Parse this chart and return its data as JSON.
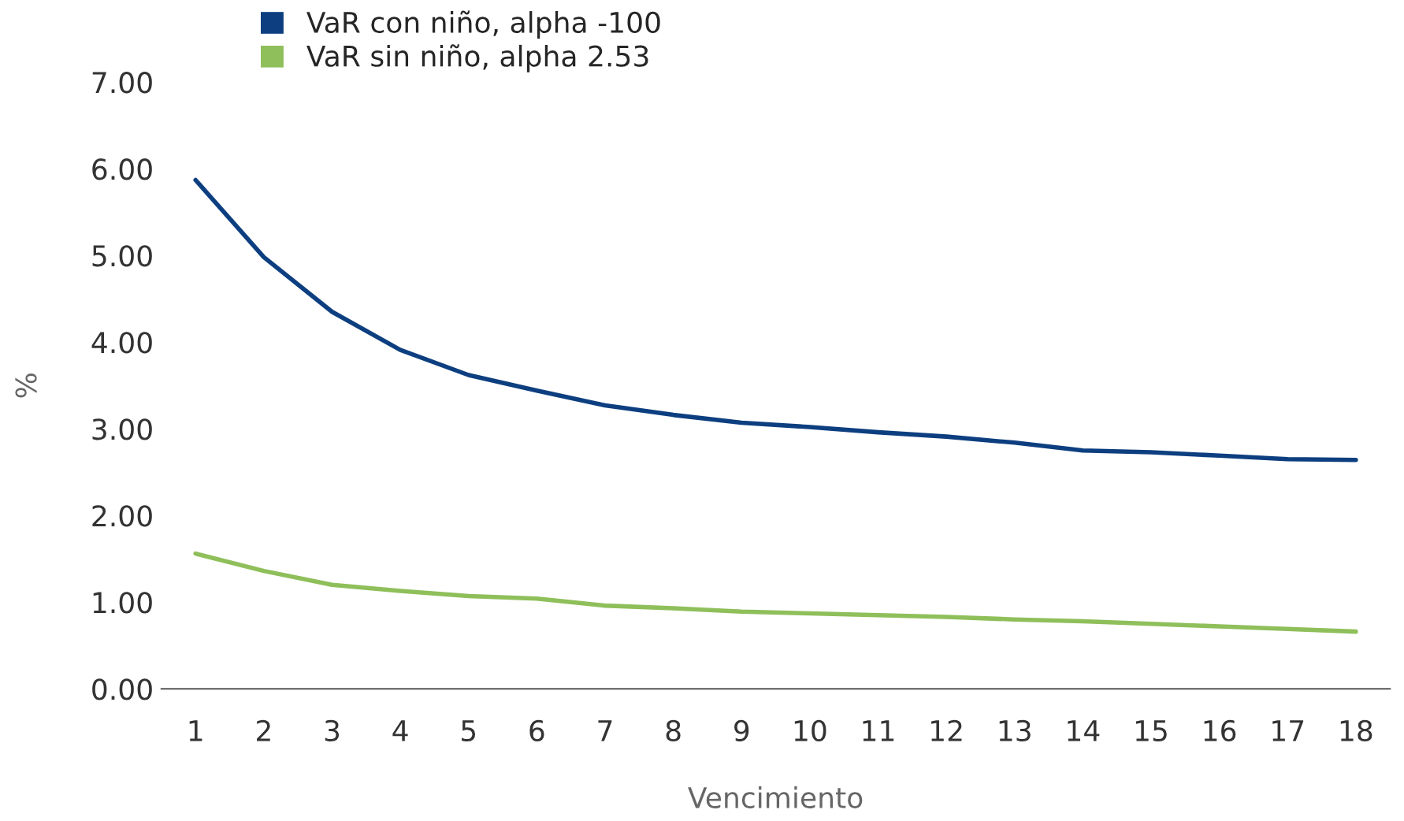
{
  "chart_data": {
    "type": "line",
    "xlabel": "Vencimiento",
    "ylabel": "%",
    "categories": [
      "1",
      "2",
      "3",
      "4",
      "5",
      "6",
      "7",
      "8",
      "9",
      "10",
      "11",
      "12",
      "13",
      "14",
      "15",
      "16",
      "17",
      "18"
    ],
    "series": [
      {
        "name": "VaR con niño, alpha -100",
        "color": "#0d3f80",
        "values": [
          5.87,
          4.98,
          4.35,
          3.91,
          3.62,
          3.44,
          3.27,
          3.16,
          3.07,
          3.02,
          2.96,
          2.91,
          2.84,
          2.75,
          2.73,
          2.69,
          2.65,
          2.64
        ]
      },
      {
        "name": "VaR sin niño, alpha 2.53",
        "color": "#8fbf5a",
        "values": [
          1.56,
          1.36,
          1.2,
          1.13,
          1.07,
          1.04,
          0.96,
          0.93,
          0.89,
          0.87,
          0.85,
          0.83,
          0.8,
          0.78,
          0.75,
          0.72,
          0.69,
          0.66
        ]
      }
    ],
    "ylim": [
      0,
      7
    ],
    "yticks": [
      {
        "value": 0,
        "label": "0.00"
      },
      {
        "value": 1,
        "label": "1.00"
      },
      {
        "value": 2,
        "label": "2.00"
      },
      {
        "value": 3,
        "label": "3.00"
      },
      {
        "value": 4,
        "label": "4.00"
      },
      {
        "value": 5,
        "label": "5.00"
      },
      {
        "value": 6,
        "label": "6.00"
      },
      {
        "value": 7,
        "label": "7.00"
      }
    ],
    "legend": "top",
    "grid": false
  }
}
